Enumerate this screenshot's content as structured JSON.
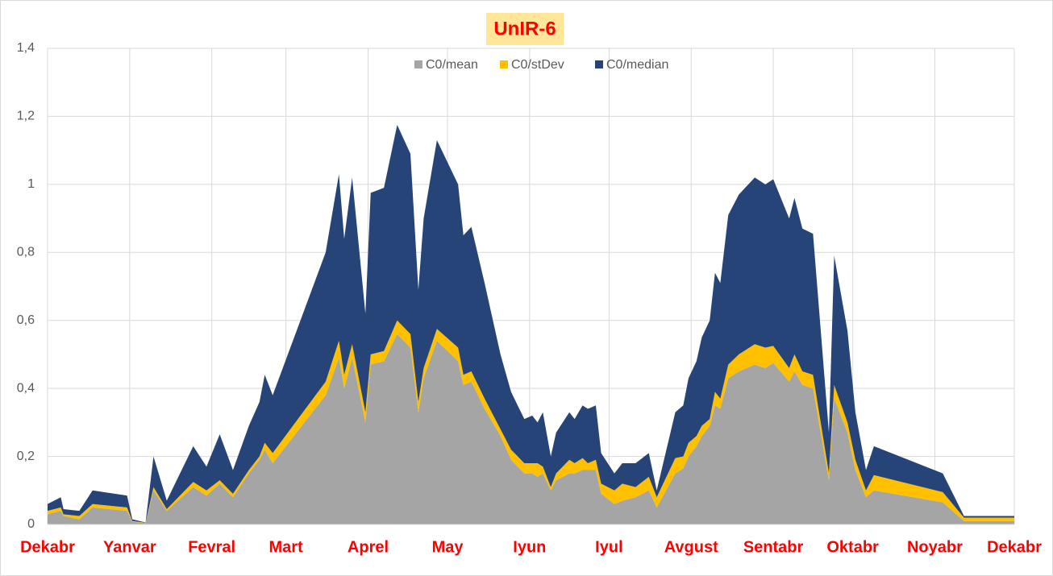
{
  "chart_data": {
    "type": "stacked-area",
    "title": "UnIR-6",
    "x": [
      0,
      5,
      6,
      12,
      17,
      30,
      32,
      37,
      40,
      45,
      55,
      60,
      65,
      70,
      76,
      80,
      82,
      85,
      105,
      110,
      112,
      115,
      120,
      122,
      127,
      132,
      137,
      140,
      142,
      147,
      155,
      157,
      160,
      165,
      171,
      175,
      180,
      183,
      185,
      187,
      190,
      192,
      197,
      199,
      202,
      204,
      207,
      209,
      214,
      217,
      222,
      227,
      230,
      237,
      240,
      242,
      245,
      247,
      250,
      252,
      254,
      257,
      261,
      267,
      271,
      274,
      280,
      282,
      285,
      289,
      295,
      297,
      302,
      305,
      309,
      312,
      338,
      346,
      365
    ],
    "series": [
      {
        "name": "C0/mean",
        "color": "#a5a5a5",
        "values": [
          0.03,
          0.04,
          0.025,
          0.015,
          0.05,
          0.04,
          0.008,
          0.004,
          0.1,
          0.04,
          0.11,
          0.085,
          0.12,
          0.08,
          0.15,
          0.19,
          0.22,
          0.18,
          0.38,
          0.49,
          0.4,
          0.49,
          0.3,
          0.47,
          0.48,
          0.56,
          0.52,
          0.33,
          0.43,
          0.54,
          0.48,
          0.41,
          0.42,
          0.34,
          0.26,
          0.19,
          0.15,
          0.15,
          0.14,
          0.15,
          0.1,
          0.13,
          0.15,
          0.15,
          0.16,
          0.16,
          0.16,
          0.09,
          0.06,
          0.07,
          0.08,
          0.1,
          0.05,
          0.15,
          0.165,
          0.2,
          0.23,
          0.26,
          0.29,
          0.35,
          0.34,
          0.43,
          0.45,
          0.47,
          0.46,
          0.475,
          0.42,
          0.45,
          0.41,
          0.4,
          0.13,
          0.37,
          0.27,
          0.16,
          0.08,
          0.1,
          0.065,
          0.01,
          0.01
        ]
      },
      {
        "name": "C0/stDev",
        "color": "#ffc000",
        "values": [
          0.01,
          0.01,
          0.005,
          0.01,
          0.01,
          0.01,
          0.002,
          0.001,
          0.01,
          0.005,
          0.015,
          0.015,
          0.01,
          0.01,
          0.01,
          0.01,
          0.02,
          0.03,
          0.04,
          0.05,
          0.04,
          0.04,
          0.03,
          0.03,
          0.03,
          0.04,
          0.04,
          0.03,
          0.03,
          0.035,
          0.04,
          0.03,
          0.03,
          0.03,
          0.02,
          0.03,
          0.03,
          0.03,
          0.04,
          0.02,
          0.01,
          0.02,
          0.04,
          0.03,
          0.035,
          0.02,
          0.03,
          0.03,
          0.04,
          0.05,
          0.03,
          0.04,
          0.03,
          0.045,
          0.035,
          0.04,
          0.03,
          0.03,
          0.02,
          0.04,
          0.03,
          0.04,
          0.05,
          0.06,
          0.06,
          0.05,
          0.04,
          0.05,
          0.04,
          0.04,
          0.02,
          0.04,
          0.03,
          0.03,
          0.02,
          0.045,
          0.03,
          0.01,
          0.01
        ]
      },
      {
        "name": "C0/median",
        "color": "#264478",
        "values": [
          0.02,
          0.03,
          0.015,
          0.015,
          0.04,
          0.035,
          0.005,
          0.001,
          0.09,
          0.025,
          0.105,
          0.07,
          0.135,
          0.07,
          0.13,
          0.16,
          0.2,
          0.17,
          0.38,
          0.49,
          0.4,
          0.49,
          0.29,
          0.475,
          0.48,
          0.575,
          0.53,
          0.33,
          0.44,
          0.555,
          0.48,
          0.41,
          0.425,
          0.34,
          0.22,
          0.17,
          0.13,
          0.14,
          0.12,
          0.16,
          0.09,
          0.12,
          0.14,
          0.13,
          0.155,
          0.16,
          0.16,
          0.09,
          0.05,
          0.06,
          0.07,
          0.07,
          0.02,
          0.135,
          0.15,
          0.19,
          0.22,
          0.26,
          0.29,
          0.35,
          0.34,
          0.44,
          0.47,
          0.49,
          0.48,
          0.49,
          0.44,
          0.46,
          0.42,
          0.415,
          0.12,
          0.38,
          0.27,
          0.14,
          0.06,
          0.085,
          0.055,
          0.005,
          0.005
        ]
      }
    ],
    "xlim": [
      0,
      365
    ],
    "xticks": [
      {
        "value": 0,
        "label": "Dekabr"
      },
      {
        "value": 31,
        "label": "Yanvar"
      },
      {
        "value": 62,
        "label": "Fevral"
      },
      {
        "value": 90,
        "label": "Mart"
      },
      {
        "value": 121,
        "label": "Aprel"
      },
      {
        "value": 151,
        "label": "May"
      },
      {
        "value": 182,
        "label": "Iyun"
      },
      {
        "value": 212,
        "label": "Iyul"
      },
      {
        "value": 243,
        "label": "Avgust"
      },
      {
        "value": 274,
        "label": "Sentabr"
      },
      {
        "value": 304,
        "label": "Oktabr"
      },
      {
        "value": 335,
        "label": "Noyabr"
      },
      {
        "value": 365,
        "label": "Dekabr"
      }
    ],
    "ylim": [
      0,
      1.4
    ],
    "yticks": [
      0,
      {
        "value": 0.2,
        "label": "0,2"
      },
      {
        "value": 0.4,
        "label": "0,4"
      },
      {
        "value": 0.6,
        "label": "0,6"
      },
      {
        "value": 0.8,
        "label": "0,8"
      },
      1,
      {
        "value": 1.2,
        "label": "1,2"
      },
      {
        "value": 1.4,
        "label": "1,4"
      }
    ],
    "grid": true,
    "legend": "top"
  }
}
